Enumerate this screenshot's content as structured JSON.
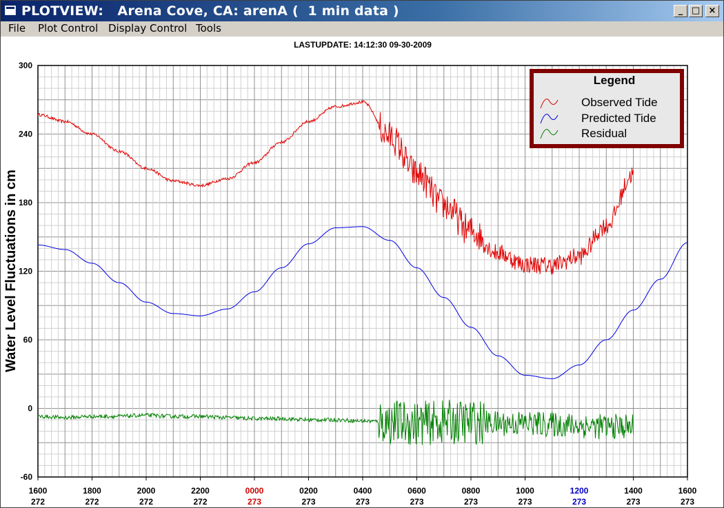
{
  "window": {
    "title": "PLOTVIEW:   Arena Cove, CA: arenA (  1 min data )",
    "controls": [
      "_",
      "□",
      "×"
    ]
  },
  "menu": [
    "File",
    "Plot Control",
    "Display Control",
    "Tools"
  ],
  "plot": {
    "last_update": "LASTUPDATE: 14:12:30  09-30-2009"
  },
  "colors": {
    "observed": "#e00000",
    "predicted": "#0000e0",
    "residual": "#008000",
    "legend_border": "#800000",
    "highlight_day": "#d00000",
    "highlight_noon": "#0000c0"
  },
  "chart_data": {
    "type": "line",
    "ylabel": "Water Level Fluctuations in cm",
    "ylim": [
      -60,
      300
    ],
    "yticks": [
      "300",
      "240",
      "180",
      "120",
      "60",
      "0",
      "-60"
    ],
    "xlim": [
      "1600 272",
      "1600 273"
    ],
    "xticks": [
      {
        "time": "1600",
        "day": "272"
      },
      {
        "time": "1800",
        "day": "272"
      },
      {
        "time": "2000",
        "day": "272"
      },
      {
        "time": "2200",
        "day": "272"
      },
      {
        "time": "0000",
        "day": "273",
        "color": "red"
      },
      {
        "time": "0200",
        "day": "273"
      },
      {
        "time": "0400",
        "day": "273"
      },
      {
        "time": "0600",
        "day": "273"
      },
      {
        "time": "0800",
        "day": "273"
      },
      {
        "time": "1000",
        "day": "273"
      },
      {
        "time": "1200",
        "day": "273",
        "color": "blue"
      },
      {
        "time": "1400",
        "day": "273"
      },
      {
        "time": "1600",
        "day": "273"
      }
    ],
    "x_unit": "hours",
    "grid": true,
    "legend": {
      "title": "Legend",
      "position": "top-right"
    },
    "series": [
      {
        "name": "Observed Tide",
        "color": "#e00000",
        "x": [
          0,
          1,
          2,
          3,
          4,
          5,
          6,
          7,
          8,
          9,
          10,
          11,
          12,
          13,
          14,
          15,
          16,
          17,
          18,
          19,
          20,
          21,
          22
        ],
        "y": [
          257,
          251,
          240,
          225,
          210,
          199,
          195,
          201,
          215,
          233,
          251,
          264,
          268,
          238,
          205,
          178,
          155,
          136,
          126,
          125,
          133,
          160,
          205
        ]
      },
      {
        "name": "Predicted Tide",
        "color": "#0000e0",
        "x": [
          0,
          1,
          2,
          3,
          4,
          5,
          6,
          7,
          8,
          9,
          10,
          11,
          12,
          13,
          14,
          15,
          16,
          17,
          18,
          19,
          20,
          21,
          22,
          23,
          24
        ],
        "y": [
          143,
          139,
          127,
          110,
          93,
          83,
          81,
          87,
          102,
          123,
          144,
          158,
          159,
          147,
          123,
          97,
          71,
          46,
          29,
          26,
          38,
          60,
          86,
          113,
          145
        ]
      },
      {
        "name": "Residual",
        "color": "#008000",
        "x": [
          0,
          1,
          2,
          3,
          4,
          5,
          6,
          7,
          8,
          9,
          10,
          11,
          12,
          13,
          14,
          15,
          16,
          17,
          18,
          19,
          20,
          21,
          22
        ],
        "y": [
          -7,
          -8,
          -7,
          -7,
          -6,
          -7,
          -7,
          -8,
          -9,
          -9,
          -10,
          -10,
          -11,
          -12,
          -13,
          -12,
          -12,
          -13,
          -13,
          -14,
          -15,
          -16,
          -16
        ]
      }
    ]
  }
}
